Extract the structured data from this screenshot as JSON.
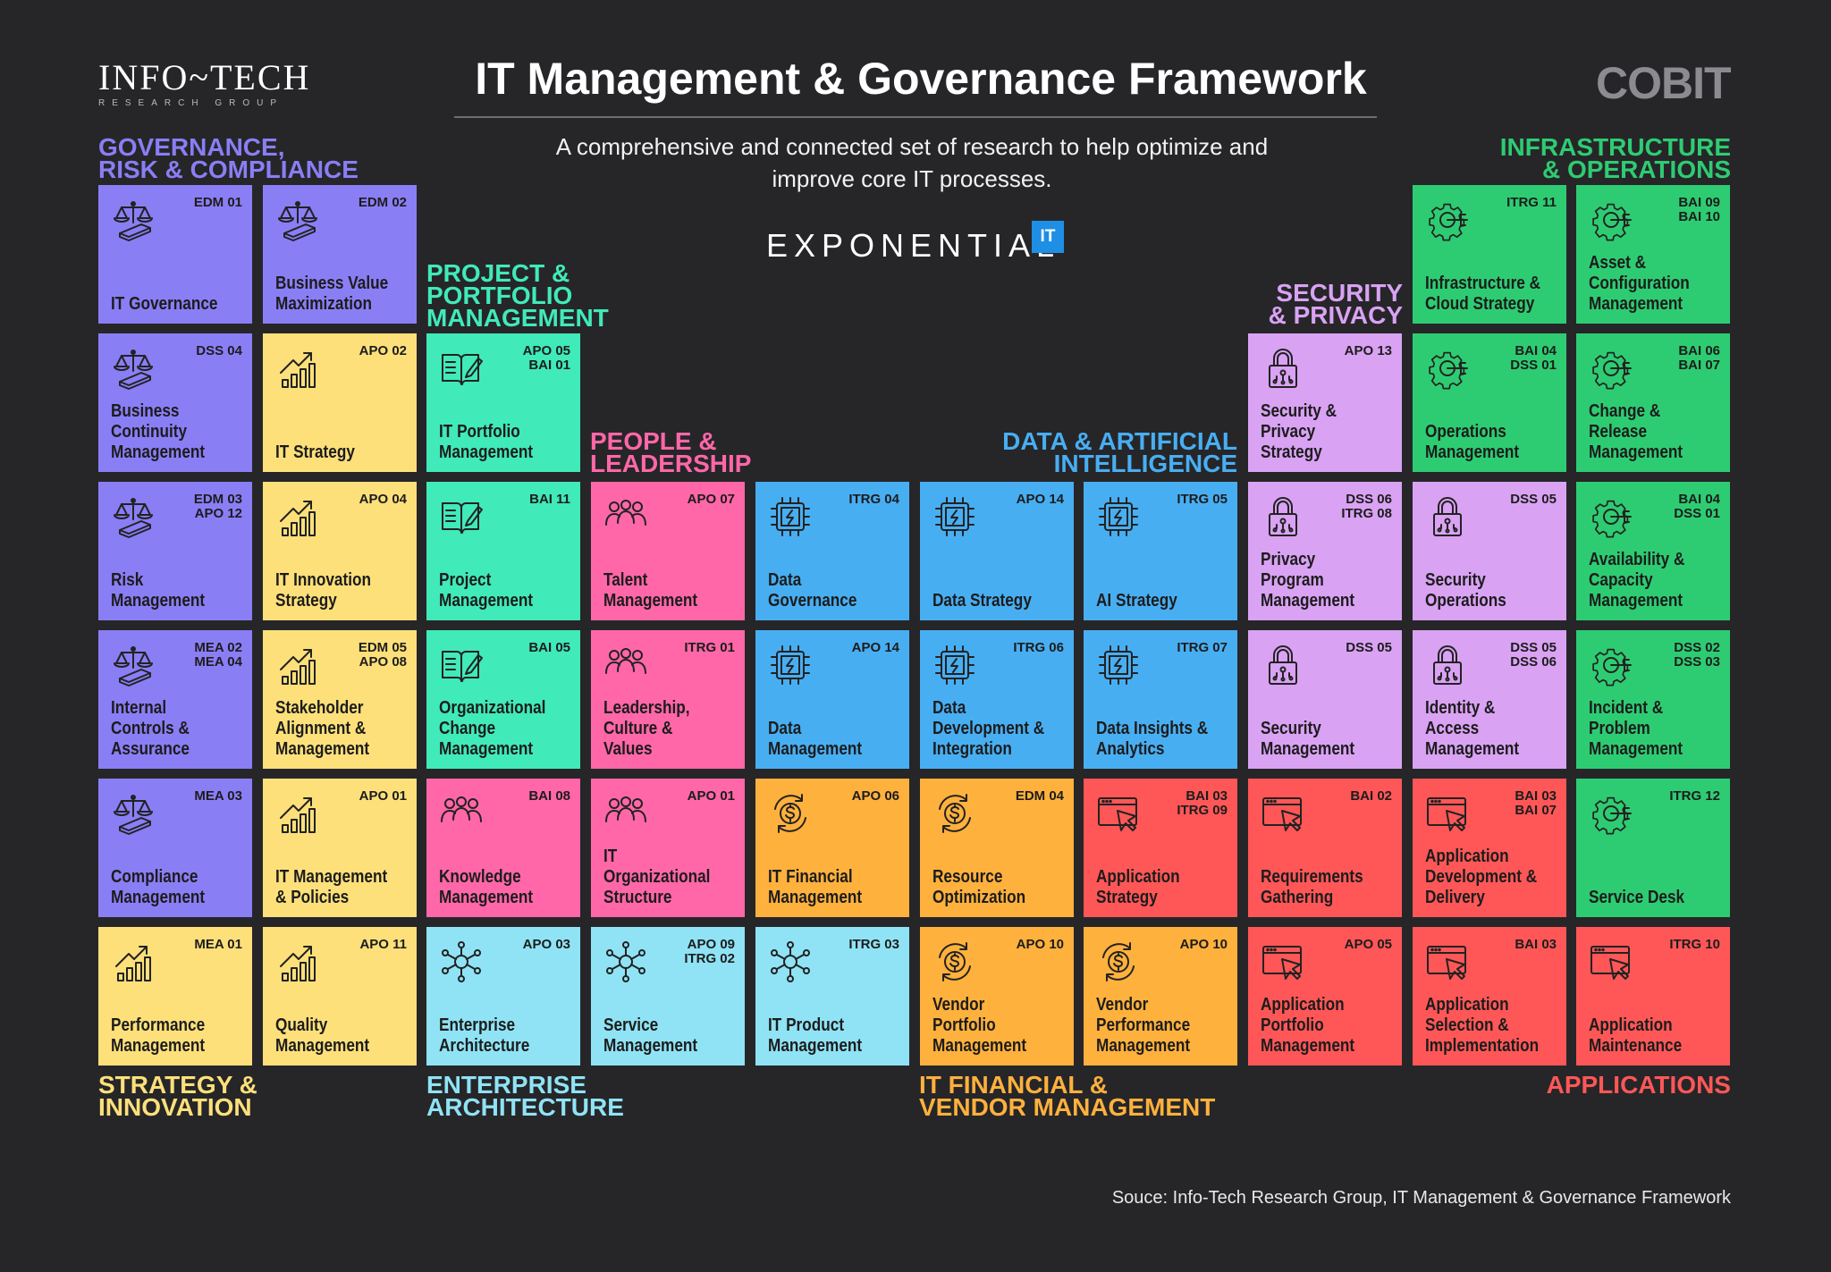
{
  "header": {
    "logo_main": "INFO~TECH",
    "logo_sub": "RESEARCH GROUP",
    "title": "IT Management & Governance Framework",
    "subtitle": "A comprehensive and connected set of research to help optimize and improve core IT processes.",
    "exponential": "EXPONENTIAL",
    "exponential_badge": "IT",
    "cobit": "COBIT"
  },
  "colors": {
    "governance": "#8a7ef5",
    "strategy": "#fde07a",
    "project": "#40eab9",
    "enterprise": "#8fe3f5",
    "people": "#ff67a8",
    "data": "#48aef2",
    "financial": "#ffb13d",
    "applications": "#ff5757",
    "security": "#d9a2f3",
    "infrastructure": "#2ecc72"
  },
  "categories": {
    "governance": [
      "GOVERNANCE,",
      "RISK & COMPLIANCE"
    ],
    "project": [
      "PROJECT &",
      "PORTFOLIO",
      "MANAGEMENT"
    ],
    "people": [
      "PEOPLE &",
      "LEADERSHIP"
    ],
    "data": [
      "DATA & ARTIFICIAL",
      "INTELLIGENCE"
    ],
    "security": [
      "SECURITY",
      "& PRIVACY"
    ],
    "infrastructure": [
      "INFRASTRUCTURE",
      "& OPERATIONS"
    ],
    "strategy": [
      "STRATEGY &",
      "INNOVATION"
    ],
    "enterprise": [
      "ENTERPRISE",
      "ARCHITECTURE"
    ],
    "financial": [
      "IT FINANCIAL &",
      "VENDOR MANAGEMENT"
    ],
    "applications": [
      "APPLICATIONS"
    ]
  },
  "tiles": [
    {
      "col": 0,
      "row": 0,
      "cat": "governance",
      "icon": "scales-icon",
      "code": "EDM 01",
      "name": "IT Governance"
    },
    {
      "col": 1,
      "row": 0,
      "cat": "governance",
      "icon": "scales-icon",
      "code": "EDM 02",
      "name": "Business Value\nMaximization"
    },
    {
      "col": 8,
      "row": 0,
      "cat": "infrastructure",
      "icon": "gear-circuit-icon",
      "code": "ITRG 11",
      "name": "Infrastructure &\nCloud Strategy"
    },
    {
      "col": 9,
      "row": 0,
      "cat": "infrastructure",
      "icon": "gear-circuit-icon",
      "code": "BAI 09\nBAI 10",
      "name": "Asset &\nConfiguration\nManagement"
    },
    {
      "col": 0,
      "row": 1,
      "cat": "governance",
      "icon": "scales-icon",
      "code": "DSS 04",
      "name": "Business\nContinuity\nManagement"
    },
    {
      "col": 1,
      "row": 1,
      "cat": "strategy",
      "icon": "growth-chart-icon",
      "code": "APO 02",
      "name": "IT Strategy"
    },
    {
      "col": 2,
      "row": 1,
      "cat": "project",
      "icon": "open-book-icon",
      "code": "APO 05\nBAI 01",
      "name": "IT Portfolio\nManagement"
    },
    {
      "col": 7,
      "row": 1,
      "cat": "security",
      "icon": "padlock-icon",
      "code": "APO 13",
      "name": "Security &\nPrivacy\nStrategy"
    },
    {
      "col": 8,
      "row": 1,
      "cat": "infrastructure",
      "icon": "gear-circuit-icon",
      "code": "BAI 04\nDSS 01",
      "name": "Operations\nManagement"
    },
    {
      "col": 9,
      "row": 1,
      "cat": "infrastructure",
      "icon": "gear-circuit-icon",
      "code": "BAI 06\nBAI 07",
      "name": "Change &\nRelease\nManagement"
    },
    {
      "col": 0,
      "row": 2,
      "cat": "governance",
      "icon": "scales-icon",
      "code": "EDM 03\nAPO 12",
      "name": "Risk\nManagement"
    },
    {
      "col": 1,
      "row": 2,
      "cat": "strategy",
      "icon": "growth-chart-icon",
      "code": "APO 04",
      "name": "IT Innovation\nStrategy"
    },
    {
      "col": 2,
      "row": 2,
      "cat": "project",
      "icon": "open-book-icon",
      "code": "BAI 11",
      "name": "Project\nManagement"
    },
    {
      "col": 3,
      "row": 2,
      "cat": "people",
      "icon": "people-group-icon",
      "code": "APO 07",
      "name": "Talent\nManagement"
    },
    {
      "col": 4,
      "row": 2,
      "cat": "data",
      "icon": "chip-icon",
      "code": "ITRG 04",
      "name": "Data\nGovernance"
    },
    {
      "col": 5,
      "row": 2,
      "cat": "data",
      "icon": "chip-icon",
      "code": "APO 14",
      "name": "Data Strategy"
    },
    {
      "col": 6,
      "row": 2,
      "cat": "data",
      "icon": "chip-icon",
      "code": "ITRG 05",
      "name": "AI Strategy"
    },
    {
      "col": 7,
      "row": 2,
      "cat": "security",
      "icon": "padlock-icon",
      "code": "DSS 06\nITRG 08",
      "name": "Privacy\nProgram\nManagement"
    },
    {
      "col": 8,
      "row": 2,
      "cat": "security",
      "icon": "padlock-icon",
      "code": "DSS 05",
      "name": "Security\nOperations"
    },
    {
      "col": 9,
      "row": 2,
      "cat": "infrastructure",
      "icon": "gear-circuit-icon",
      "code": "BAI 04\nDSS 01",
      "name": "Availability &\nCapacity\nManagement"
    },
    {
      "col": 0,
      "row": 3,
      "cat": "governance",
      "icon": "scales-icon",
      "code": "MEA 02\nMEA 04",
      "name": "Internal\nControls &\nAssurance"
    },
    {
      "col": 1,
      "row": 3,
      "cat": "strategy",
      "icon": "growth-chart-icon",
      "code": "EDM 05\nAPO 08",
      "name": "Stakeholder\nAlignment &\nManagement"
    },
    {
      "col": 2,
      "row": 3,
      "cat": "project",
      "icon": "open-book-icon",
      "code": "BAI 05",
      "name": "Organizational\nChange\nManagement"
    },
    {
      "col": 3,
      "row": 3,
      "cat": "people",
      "icon": "people-group-icon",
      "code": "ITRG 01",
      "name": "Leadership,\nCulture &\nValues"
    },
    {
      "col": 4,
      "row": 3,
      "cat": "data",
      "icon": "chip-icon",
      "code": "APO 14",
      "name": "Data\nManagement"
    },
    {
      "col": 5,
      "row": 3,
      "cat": "data",
      "icon": "chip-icon",
      "code": "ITRG 06",
      "name": "Data\nDevelopment &\nIntegration"
    },
    {
      "col": 6,
      "row": 3,
      "cat": "data",
      "icon": "chip-icon",
      "code": "ITRG 07",
      "name": "Data Insights &\nAnalytics"
    },
    {
      "col": 7,
      "row": 3,
      "cat": "security",
      "icon": "padlock-icon",
      "code": "DSS 05",
      "name": "Security\nManagement"
    },
    {
      "col": 8,
      "row": 3,
      "cat": "security",
      "icon": "padlock-icon",
      "code": "DSS 05\nDSS 06",
      "name": "Identity &\nAccess\nManagement"
    },
    {
      "col": 9,
      "row": 3,
      "cat": "infrastructure",
      "icon": "gear-circuit-icon",
      "code": "DSS 02\nDSS 03",
      "name": "Incident &\nProblem\nManagement"
    },
    {
      "col": 0,
      "row": 4,
      "cat": "governance",
      "icon": "scales-icon",
      "code": "MEA 03",
      "name": "Compliance\nManagement"
    },
    {
      "col": 1,
      "row": 4,
      "cat": "strategy",
      "icon": "growth-chart-icon",
      "code": "APO 01",
      "name": "IT Management\n& Policies"
    },
    {
      "col": 2,
      "row": 4,
      "cat": "people",
      "icon": "people-group-icon",
      "code": "BAI 08",
      "name": "Knowledge\nManagement"
    },
    {
      "col": 3,
      "row": 4,
      "cat": "people",
      "icon": "people-group-icon",
      "code": "APO 01",
      "name": "IT\nOrganizational\nStructure"
    },
    {
      "col": 4,
      "row": 4,
      "cat": "financial",
      "icon": "dollar-cycle-icon",
      "code": "APO 06",
      "name": "IT Financial\nManagement"
    },
    {
      "col": 5,
      "row": 4,
      "cat": "financial",
      "icon": "dollar-cycle-icon",
      "code": "EDM 04",
      "name": "Resource\nOptimization"
    },
    {
      "col": 6,
      "row": 4,
      "cat": "applications",
      "icon": "app-window-cursor-icon",
      "code": "BAI 03\nITRG 09",
      "name": "Application\nStrategy"
    },
    {
      "col": 7,
      "row": 4,
      "cat": "applications",
      "icon": "app-window-cursor-icon",
      "code": "BAI 02",
      "name": "Requirements\nGathering"
    },
    {
      "col": 8,
      "row": 4,
      "cat": "applications",
      "icon": "app-window-cursor-icon",
      "code": "BAI 03\nBAI 07",
      "name": "Application\nDevelopment &\nDelivery"
    },
    {
      "col": 9,
      "row": 4,
      "cat": "infrastructure",
      "icon": "gear-circuit-icon",
      "code": "ITRG 12",
      "name": "Service Desk"
    },
    {
      "col": 0,
      "row": 5,
      "cat": "strategy",
      "icon": "growth-chart-icon",
      "code": "MEA 01",
      "name": "Performance\nManagement"
    },
    {
      "col": 1,
      "row": 5,
      "cat": "strategy",
      "icon": "growth-chart-icon",
      "code": "APO 11",
      "name": "Quality\nManagement"
    },
    {
      "col": 2,
      "row": 5,
      "cat": "enterprise",
      "icon": "network-hub-icon",
      "code": "APO 03",
      "name": "Enterprise\nArchitecture"
    },
    {
      "col": 3,
      "row": 5,
      "cat": "enterprise",
      "icon": "network-hub-icon",
      "code": "APO 09\nITRG 02",
      "name": "Service\nManagement"
    },
    {
      "col": 4,
      "row": 5,
      "cat": "enterprise",
      "icon": "network-hub-icon",
      "code": "ITRG 03",
      "name": "IT Product\nManagement"
    },
    {
      "col": 5,
      "row": 5,
      "cat": "financial",
      "icon": "dollar-cycle-icon",
      "code": "APO 10",
      "name": "Vendor\nPortfolio\nManagement"
    },
    {
      "col": 6,
      "row": 5,
      "cat": "financial",
      "icon": "dollar-cycle-icon",
      "code": "APO 10",
      "name": "Vendor\nPerformance\nManagement"
    },
    {
      "col": 7,
      "row": 5,
      "cat": "applications",
      "icon": "app-window-cursor-icon",
      "code": "APO 05",
      "name": "Application\nPortfolio\nManagement"
    },
    {
      "col": 8,
      "row": 5,
      "cat": "applications",
      "icon": "app-window-cursor-icon",
      "code": "BAI 03",
      "name": "Application\nSelection &\nImplementation"
    },
    {
      "col": 9,
      "row": 5,
      "cat": "applications",
      "icon": "app-window-cursor-icon",
      "code": "ITRG 10",
      "name": "Application\nMaintenance"
    }
  ],
  "source": "Souce: Info-Tech Research Group, IT Management & Governance Framework"
}
